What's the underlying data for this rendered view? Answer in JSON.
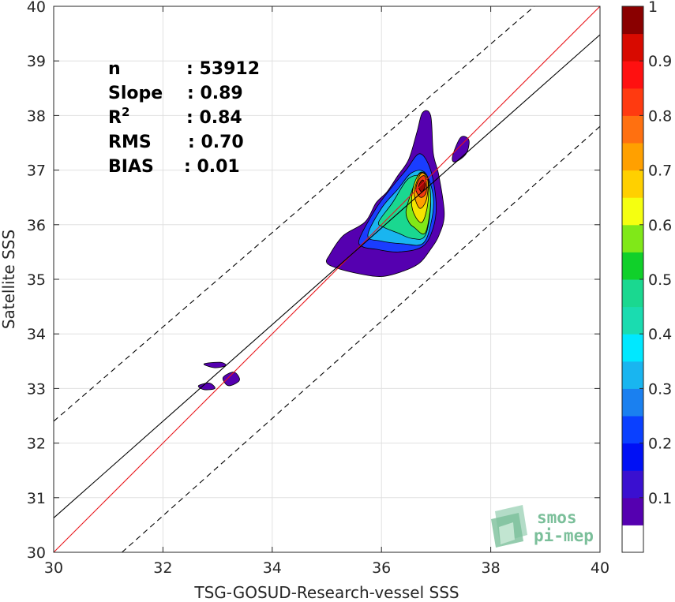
{
  "chart_data": {
    "type": "heatmap",
    "title": "",
    "xlabel": "TSG-GOSUD-Research-vessel SSS",
    "ylabel": "Satellite SSS",
    "xlim": [
      30,
      40
    ],
    "ylim": [
      30,
      40
    ],
    "xticks": [
      30,
      32,
      34,
      36,
      38,
      40
    ],
    "yticks": [
      30,
      31,
      32,
      33,
      34,
      35,
      36,
      37,
      38,
      39,
      40
    ],
    "grid": true,
    "stats": [
      {
        "label": "n",
        "value": ": 53912"
      },
      {
        "label": "Slope",
        "value": ": 0.89"
      },
      {
        "label": "R",
        "sup": "2",
        "value": ": 0.84"
      },
      {
        "label": "RMS",
        "value": ": 0.70"
      },
      {
        "label": "BIAS",
        "value": ": 0.01"
      }
    ],
    "reference_lines": [
      {
        "name": "one-to-one",
        "style": "solid",
        "color": "#e8141a",
        "points": [
          [
            30,
            30
          ],
          [
            40,
            40
          ]
        ]
      },
      {
        "name": "regression",
        "style": "solid",
        "color": "#000000",
        "points": [
          [
            30,
            30.63
          ],
          [
            40,
            39.48
          ]
        ]
      },
      {
        "name": "upper-bound",
        "style": "dashed",
        "color": "#000000",
        "points": [
          [
            30,
            32.4
          ],
          [
            38.8,
            40
          ]
        ]
      },
      {
        "name": "lower-bound",
        "style": "dashed",
        "color": "#000000",
        "points": [
          [
            31.25,
            30
          ],
          [
            40,
            37.8
          ]
        ]
      }
    ],
    "contours": [
      {
        "level": 0.05,
        "color": "#5500b0",
        "points": [
          [
            35.05,
            35.45
          ],
          [
            35.3,
            35.8
          ],
          [
            35.7,
            36.05
          ],
          [
            35.9,
            36.4
          ],
          [
            36.1,
            36.6
          ],
          [
            36.3,
            36.9
          ],
          [
            36.5,
            37.2
          ],
          [
            36.65,
            37.7
          ],
          [
            36.75,
            38.05
          ],
          [
            36.9,
            38.0
          ],
          [
            36.95,
            37.3
          ],
          [
            37.05,
            36.9
          ],
          [
            37.15,
            36.2
          ],
          [
            37.05,
            35.8
          ],
          [
            36.9,
            35.55
          ],
          [
            36.7,
            35.3
          ],
          [
            36.4,
            35.15
          ],
          [
            36.0,
            35.05
          ],
          [
            35.6,
            35.1
          ],
          [
            35.2,
            35.2
          ],
          [
            35.0,
            35.3
          ]
        ]
      },
      {
        "level": 0.05,
        "color": "#5500b0",
        "points": [
          [
            37.3,
            37.25
          ],
          [
            37.45,
            37.6
          ],
          [
            37.6,
            37.55
          ],
          [
            37.55,
            37.3
          ],
          [
            37.35,
            37.15
          ]
        ]
      },
      {
        "level": 0.05,
        "color": "#5500b0",
        "points": [
          [
            32.65,
            33.05
          ],
          [
            32.85,
            33.1
          ],
          [
            32.95,
            33.0
          ],
          [
            32.75,
            32.98
          ]
        ]
      },
      {
        "level": 0.05,
        "color": "#5500b0",
        "points": [
          [
            32.75,
            33.45
          ],
          [
            33.05,
            33.48
          ],
          [
            33.15,
            33.42
          ],
          [
            32.95,
            33.38
          ]
        ]
      },
      {
        "level": 0.05,
        "color": "#5500b0",
        "points": [
          [
            33.1,
            33.2
          ],
          [
            33.3,
            33.3
          ],
          [
            33.4,
            33.15
          ],
          [
            33.2,
            33.05
          ]
        ]
      },
      {
        "level": 0.15,
        "color": "#1a3dff",
        "points": [
          [
            35.6,
            35.75
          ],
          [
            35.9,
            36.3
          ],
          [
            36.2,
            36.7
          ],
          [
            36.45,
            37.0
          ],
          [
            36.7,
            37.3
          ],
          [
            36.9,
            37.0
          ],
          [
            37.0,
            36.4
          ],
          [
            36.95,
            35.95
          ],
          [
            36.75,
            35.6
          ],
          [
            36.3,
            35.5
          ],
          [
            35.9,
            35.55
          ],
          [
            35.65,
            35.6
          ]
        ]
      },
      {
        "level": 0.3,
        "color": "#19b5f0",
        "points": [
          [
            35.75,
            35.8
          ],
          [
            36.0,
            36.3
          ],
          [
            36.3,
            36.65
          ],
          [
            36.55,
            36.95
          ],
          [
            36.8,
            36.95
          ],
          [
            36.95,
            36.5
          ],
          [
            36.9,
            36.0
          ],
          [
            36.75,
            35.65
          ],
          [
            36.4,
            35.65
          ],
          [
            36.0,
            35.7
          ]
        ]
      },
      {
        "level": 0.45,
        "color": "#1ad890",
        "points": [
          [
            35.95,
            36.05
          ],
          [
            36.2,
            36.4
          ],
          [
            36.5,
            36.85
          ],
          [
            36.8,
            36.85
          ],
          [
            36.9,
            36.4
          ],
          [
            36.8,
            35.8
          ],
          [
            36.55,
            35.75
          ],
          [
            36.3,
            35.85
          ],
          [
            36.05,
            35.95
          ]
        ]
      },
      {
        "level": 0.55,
        "color": "#80e818",
        "points": [
          [
            36.45,
            36.25
          ],
          [
            36.55,
            36.6
          ],
          [
            36.7,
            36.95
          ],
          [
            36.85,
            36.85
          ],
          [
            36.9,
            36.4
          ],
          [
            36.8,
            35.85
          ],
          [
            36.6,
            35.95
          ],
          [
            36.5,
            36.05
          ]
        ]
      },
      {
        "level": 0.65,
        "color": "#f5e400",
        "points": [
          [
            36.55,
            36.4
          ],
          [
            36.6,
            36.75
          ],
          [
            36.72,
            36.95
          ],
          [
            36.85,
            36.85
          ],
          [
            36.85,
            36.4
          ],
          [
            36.75,
            36.05
          ],
          [
            36.62,
            36.15
          ]
        ]
      },
      {
        "level": 0.75,
        "color": "#ffa000",
        "points": [
          [
            36.6,
            36.55
          ],
          [
            36.65,
            36.8
          ],
          [
            36.75,
            36.95
          ],
          [
            36.85,
            36.8
          ],
          [
            36.82,
            36.45
          ],
          [
            36.7,
            36.3
          ]
        ]
      },
      {
        "level": 0.85,
        "color": "#f03a10",
        "points": [
          [
            36.63,
            36.65
          ],
          [
            36.7,
            36.85
          ],
          [
            36.8,
            36.88
          ],
          [
            36.82,
            36.6
          ],
          [
            36.72,
            36.5
          ]
        ]
      },
      {
        "level": 0.95,
        "color": "#9a0a00",
        "points": [
          [
            36.68,
            36.7
          ],
          [
            36.75,
            36.82
          ],
          [
            36.8,
            36.72
          ],
          [
            36.74,
            36.6
          ]
        ]
      }
    ],
    "colorbar": {
      "range": [
        0,
        1
      ],
      "ticks": [
        0.1,
        0.2,
        0.3,
        0.4,
        0.5,
        0.6,
        0.7,
        0.8,
        0.9,
        1
      ],
      "colors": [
        "#ffffff",
        "#5500b0",
        "#3a10d0",
        "#0010f5",
        "#0a40ff",
        "#1a80f0",
        "#19b5f0",
        "#00e8ff",
        "#1adcb0",
        "#1ad890",
        "#10d02a",
        "#80e818",
        "#f5ff10",
        "#ffd000",
        "#ffa000",
        "#ff7010",
        "#ff3a10",
        "#ff1010",
        "#d80a00",
        "#8a0000"
      ]
    },
    "logo": {
      "line1": "smos",
      "line2": "pi-mep"
    }
  }
}
